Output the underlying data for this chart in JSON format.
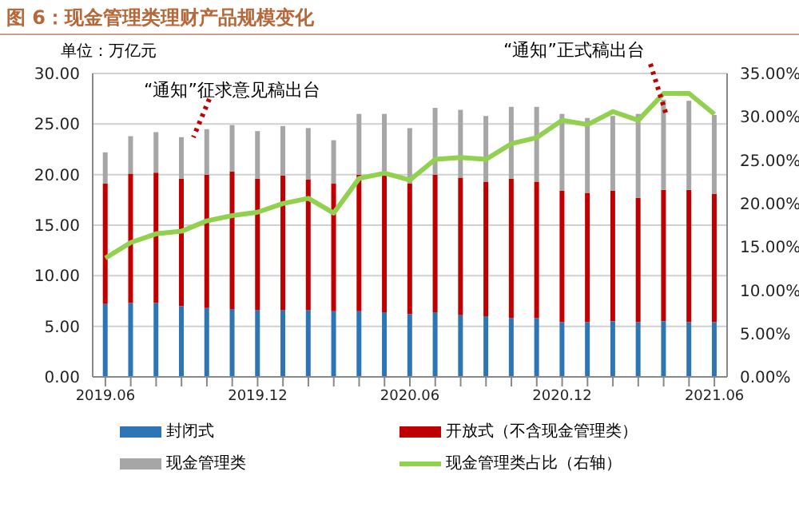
{
  "chart_data": {
    "type": "bar",
    "title": "图 6：现金管理类理财产品规模变化",
    "categories": [
      "2019.06",
      null,
      null,
      null,
      null,
      null,
      "2019.12",
      null,
      null,
      null,
      null,
      null,
      "2020.06",
      null,
      null,
      null,
      null,
      null,
      "2020.12",
      null,
      null,
      null,
      null,
      null,
      "2021.06"
    ],
    "stacked": true,
    "series": [
      {
        "name": "封闭式",
        "color": "#2e75b6",
        "values": [
          7.2,
          7.3,
          7.3,
          7.0,
          6.8,
          6.7,
          6.6,
          6.6,
          6.6,
          6.5,
          6.5,
          6.4,
          6.2,
          6.4,
          6.1,
          6.0,
          5.8,
          5.8,
          5.4,
          5.4,
          5.5,
          5.4,
          5.5,
          5.4,
          5.4
        ]
      },
      {
        "name": "开放式（不含现金管理类）",
        "color": "#c00000",
        "values": [
          11.9,
          12.8,
          12.9,
          12.6,
          13.2,
          13.6,
          13.0,
          13.3,
          12.9,
          12.6,
          13.5,
          13.5,
          12.9,
          13.6,
          13.6,
          13.3,
          13.8,
          13.5,
          13.0,
          12.8,
          12.9,
          12.3,
          13.0,
          13.1,
          12.7
        ]
      },
      {
        "name": "现金管理类",
        "color": "#a6a6a6",
        "values": [
          3.1,
          3.7,
          4.0,
          4.1,
          4.5,
          4.6,
          4.7,
          4.9,
          5.1,
          4.3,
          6.0,
          6.1,
          5.5,
          6.6,
          6.7,
          6.5,
          7.1,
          7.4,
          7.6,
          7.4,
          7.4,
          8.3,
          8.9,
          8.8,
          7.8
        ]
      },
      {
        "name": "现金管理类占比（右轴）",
        "type": "line",
        "axis": "y2",
        "color": "#92d050",
        "values": [
          13.7,
          15.5,
          16.5,
          16.8,
          18.0,
          18.6,
          19.0,
          20.0,
          20.6,
          18.9,
          22.9,
          23.5,
          22.7,
          25.1,
          25.3,
          25.1,
          26.9,
          27.6,
          29.6,
          29.1,
          30.6,
          29.6,
          32.7,
          32.7,
          30.3
        ]
      }
    ],
    "ylim": [
      0,
      30
    ],
    "yticks": [
      {
        "value": 0,
        "label": "0.00"
      },
      {
        "value": 5,
        "label": "5.00"
      },
      {
        "value": 10,
        "label": "10.00"
      },
      {
        "value": 15,
        "label": "15.00"
      },
      {
        "value": 20,
        "label": "20.00"
      },
      {
        "value": 25,
        "label": "25.00"
      },
      {
        "value": 30,
        "label": "30.00"
      }
    ],
    "y2lim": [
      0,
      35
    ],
    "y2ticks": [
      {
        "value": 0,
        "label": "0.00%"
      },
      {
        "value": 5,
        "label": "5.00%"
      },
      {
        "value": 10,
        "label": "10.00%"
      },
      {
        "value": 15,
        "label": "15.00%"
      },
      {
        "value": 20,
        "label": "20.00%"
      },
      {
        "value": 25,
        "label": "25.00%"
      },
      {
        "value": 30,
        "label": "30.00%"
      },
      {
        "value": 35,
        "label": "35.00%"
      }
    ],
    "grid": "y",
    "legend": "bottom",
    "marker": "none",
    "annotations": [
      "单位：万亿元",
      "“通知”征求意见稿出台",
      "“通知”正式稿出台"
    ]
  }
}
